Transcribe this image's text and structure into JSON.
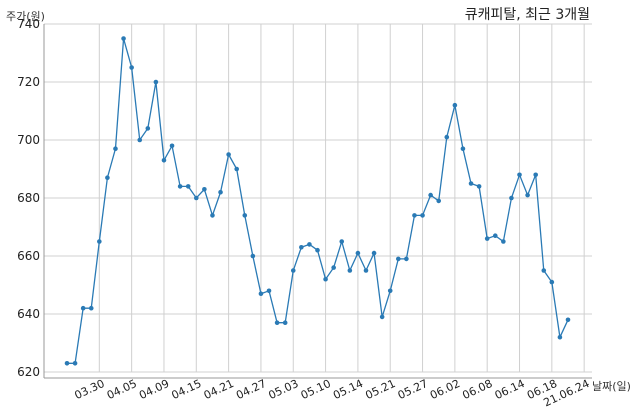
{
  "chart_data": {
    "type": "line",
    "title": "큐캐피탈, 최근 3개월",
    "ylabel": "주가(원)",
    "xlabel": "날짜(일)",
    "ylim": [
      620,
      740
    ],
    "yticks": [
      620,
      640,
      660,
      680,
      700,
      720,
      740
    ],
    "grid": true,
    "xtick_labels": [
      "03.30",
      "04.05",
      "04.09",
      "04.15",
      "04.21",
      "04.27",
      "05.03",
      "05.10",
      "05.14",
      "05.21",
      "05.27",
      "06.02",
      "06.08",
      "06.14",
      "06.18",
      "21.06.24"
    ],
    "xtick_index": [
      4,
      8,
      12,
      16,
      20,
      24,
      28,
      32,
      36,
      40,
      44,
      48,
      52,
      56,
      60,
      64
    ],
    "series": [
      {
        "color": "#2a7ab5",
        "values": [
          623,
          623,
          642,
          642,
          665,
          687,
          697,
          735,
          725,
          700,
          704,
          720,
          693,
          698,
          684,
          684,
          680,
          683,
          674,
          682,
          695,
          690,
          674,
          660,
          647,
          648,
          637,
          637,
          655,
          663,
          664,
          662,
          652,
          656,
          665,
          655,
          661,
          655,
          661,
          639,
          648,
          659,
          659,
          674,
          674,
          681,
          679,
          701,
          712,
          697,
          685,
          684,
          666,
          667,
          665,
          680,
          688,
          681,
          688,
          655,
          651,
          632,
          638
        ]
      }
    ]
  }
}
